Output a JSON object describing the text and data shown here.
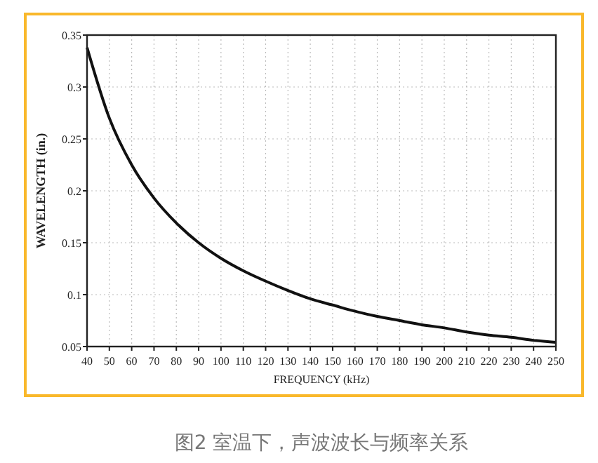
{
  "chart_data": {
    "type": "line",
    "xlabel": "FREQUENCY  (kHz)",
    "ylabel": "WAVELENGTH (in.)",
    "x": [
      40,
      50,
      60,
      70,
      80,
      90,
      100,
      110,
      120,
      130,
      140,
      150,
      160,
      170,
      180,
      190,
      200,
      210,
      220,
      230,
      240,
      250
    ],
    "series": [
      {
        "color": "#111111",
        "values": [
          0.338,
          0.27,
          0.225,
          0.193,
          0.169,
          0.15,
          0.135,
          0.123,
          0.113,
          0.104,
          0.096,
          0.09,
          0.084,
          0.079,
          0.075,
          0.071,
          0.068,
          0.064,
          0.061,
          0.059,
          0.056,
          0.054
        ]
      }
    ],
    "xlim": [
      40,
      250
    ],
    "ylim": [
      0.05,
      0.35
    ],
    "xticks": [
      40,
      50,
      60,
      70,
      80,
      90,
      100,
      110,
      120,
      130,
      140,
      150,
      160,
      170,
      180,
      190,
      200,
      210,
      220,
      230,
      240,
      250
    ],
    "yticks": [
      0.05,
      0.1,
      0.15,
      0.2,
      0.25,
      0.3,
      0.35
    ],
    "grid": true,
    "marker": "none",
    "line_style": "solid",
    "annotations": [
      "图2 室温下，声波波长与频率关系"
    ]
  }
}
